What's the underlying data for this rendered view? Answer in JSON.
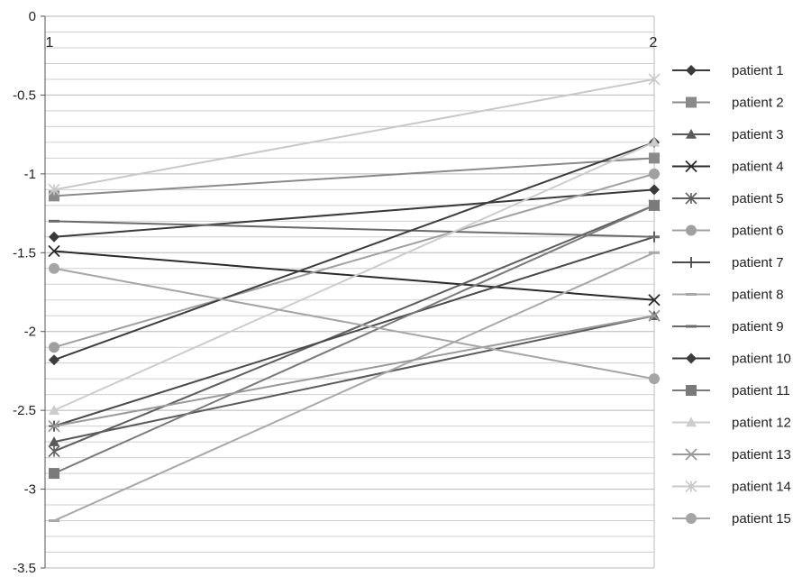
{
  "chart_data": {
    "type": "line",
    "x": [
      1,
      2
    ],
    "x_tick_labels": [
      "1",
      "2"
    ],
    "ylim": [
      -3.5,
      0
    ],
    "y_ticks": [
      0,
      -0.5,
      -1,
      -1.5,
      -2,
      -2.5,
      -3,
      -3.5
    ],
    "y_tick_labels": [
      "0",
      "-0.5",
      "-1",
      "-1.5",
      "-2",
      "-2.5",
      "-3",
      "-3.5"
    ],
    "minor_grid_step": 0.1,
    "grid": true,
    "legend_position": "right",
    "series": [
      {
        "name": "patient 1",
        "values": [
          -1.4,
          -1.1
        ],
        "marker": "diamond",
        "color": "#3a3a3a"
      },
      {
        "name": "patient 2",
        "values": [
          -1.14,
          -0.9
        ],
        "marker": "square",
        "color": "#8a8a8a"
      },
      {
        "name": "patient 3",
        "values": [
          -2.7,
          -1.9
        ],
        "marker": "triangle",
        "color": "#5a5a5a"
      },
      {
        "name": "patient 4",
        "values": [
          -1.49,
          -1.8
        ],
        "marker": "x",
        "color": "#2a2a2a"
      },
      {
        "name": "patient 5",
        "values": [
          -2.76,
          -1.2
        ],
        "marker": "asterisk",
        "color": "#5e5e5e"
      },
      {
        "name": "patient 6",
        "values": [
          -2.1,
          -1.0
        ],
        "marker": "circle",
        "color": "#a0a0a0"
      },
      {
        "name": "patient 7",
        "values": [
          -2.6,
          -1.4
        ],
        "marker": "plus",
        "color": "#4a4a4a"
      },
      {
        "name": "patient 8",
        "values": [
          -3.2,
          -1.5
        ],
        "marker": "dash",
        "color": "#a8a8a8"
      },
      {
        "name": "patient 9",
        "values": [
          -1.3,
          -1.4
        ],
        "marker": "dash",
        "color": "#6a6a6a"
      },
      {
        "name": "patient 10",
        "values": [
          -2.18,
          -0.8
        ],
        "marker": "diamond",
        "color": "#3d3d3d"
      },
      {
        "name": "patient 11",
        "values": [
          -2.9,
          -1.2
        ],
        "marker": "square",
        "color": "#7a7a7a"
      },
      {
        "name": "patient 12",
        "values": [
          -2.5,
          -0.8
        ],
        "marker": "triangle",
        "color": "#cccccc"
      },
      {
        "name": "patient 13",
        "values": [
          -2.6,
          -1.9
        ],
        "marker": "x",
        "color": "#9a9a9a"
      },
      {
        "name": "patient 14",
        "values": [
          -1.1,
          -0.4
        ],
        "marker": "asterisk",
        "color": "#c8c8c8"
      },
      {
        "name": "patient 15",
        "values": [
          -1.6,
          -2.3
        ],
        "marker": "circle",
        "color": "#a5a5a5"
      }
    ]
  }
}
